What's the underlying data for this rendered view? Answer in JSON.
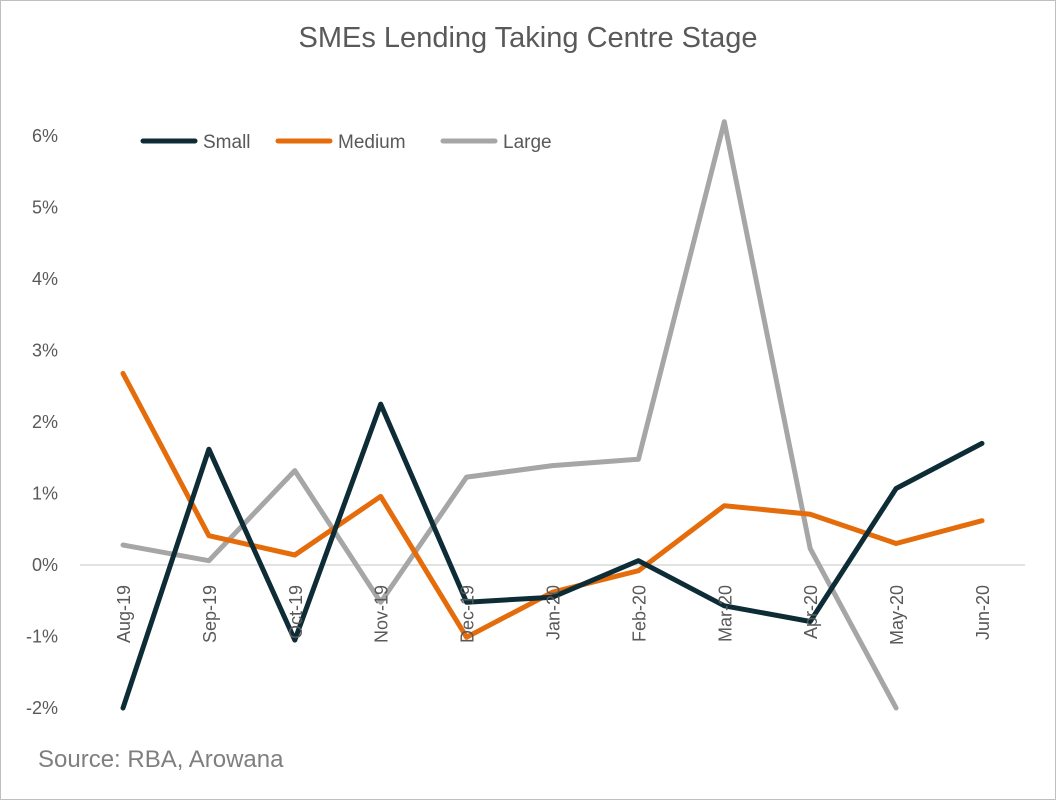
{
  "chart_data": {
    "type": "line",
    "title": "SMEs Lending Taking Centre Stage",
    "source": "Source: RBA, Arowana",
    "xlabel": "",
    "ylabel": "",
    "categories": [
      "Aug-19",
      "Sep-19",
      "Oct-19",
      "Nov-19",
      "Dec-19",
      "Jan-20",
      "Feb-20",
      "Mar-20",
      "Apr-20",
      "May-20",
      "Jun-20"
    ],
    "y_ticks": [
      {
        "value": -2,
        "label": "-2%"
      },
      {
        "value": -1,
        "label": "-1%"
      },
      {
        "value": 0,
        "label": "0%"
      },
      {
        "value": 1,
        "label": "1%"
      },
      {
        "value": 2,
        "label": "2%"
      },
      {
        "value": 3,
        "label": "3%"
      },
      {
        "value": 4,
        "label": "4%"
      },
      {
        "value": 5,
        "label": "5%"
      },
      {
        "value": 6,
        "label": "6%"
      }
    ],
    "ylim": [
      -2,
      6
    ],
    "grid": false,
    "legend_position": "top-left",
    "series": [
      {
        "name": "Small",
        "color": "#0d2c36",
        "values": [
          -2.0,
          1.62,
          -1.05,
          2.25,
          -0.52,
          -0.45,
          0.06,
          -0.57,
          -0.79,
          1.07,
          1.7
        ]
      },
      {
        "name": "Medium",
        "color": "#e46c0a",
        "values": [
          2.68,
          0.41,
          0.14,
          0.96,
          -1.01,
          -0.38,
          -0.08,
          0.83,
          0.71,
          0.3,
          0.62
        ]
      },
      {
        "name": "Large",
        "color": "#a6a6a6",
        "values": [
          0.28,
          0.06,
          1.32,
          -0.52,
          1.23,
          1.39,
          1.48,
          6.2,
          0.23,
          -2.0,
          null
        ]
      }
    ]
  }
}
